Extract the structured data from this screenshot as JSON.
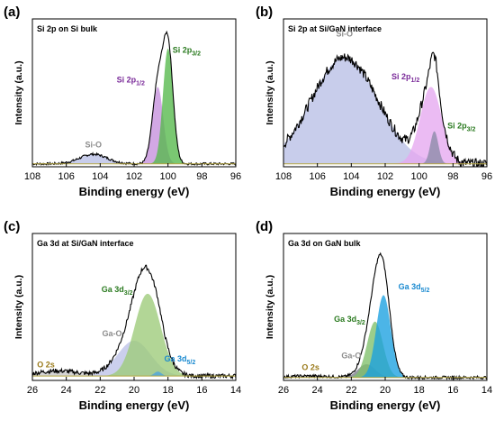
{
  "chart_data": [
    {
      "type": "line",
      "panel": "(a)",
      "title": "Si 2p on Si bulk",
      "xlabel": "Binding energy (eV)",
      "ylabel": "Intensity (a.u.)",
      "xlim": [
        108,
        96
      ],
      "xticks": [
        108,
        106,
        104,
        102,
        100,
        98,
        96
      ],
      "ylim": [
        0,
        1
      ],
      "background": 0.02,
      "components": [
        {
          "annotation": "Si-O",
          "annotation_color": "#8c8c8c",
          "fill": "#b8bfe6",
          "center": 104.4,
          "amplitude": 0.065,
          "fwhm": 1.9,
          "label_x": 104.4,
          "label_y": 0.13
        },
        {
          "annotation": "Si 2p",
          "sub": "1/2",
          "annotation_color": "#7a2a99",
          "fill": "#c58fdc",
          "center": 100.6,
          "amplitude": 0.52,
          "fwhm": 0.75,
          "label_x": 102.2,
          "label_y": 0.57
        },
        {
          "annotation": "Si 2p",
          "sub": "3/2",
          "annotation_color": "#2a7a1f",
          "fill": "#55b84a",
          "center": 100.0,
          "amplitude": 0.78,
          "fwhm": 0.7,
          "label_x": 98.9,
          "label_y": 0.77
        }
      ],
      "envelope_noise": 0.008
    },
    {
      "type": "line",
      "panel": "(b)",
      "title": "Si 2p at Si/GaN interface",
      "xlabel": "Binding energy (eV)",
      "ylabel": "Intensity (a.u.)",
      "xlim": [
        108,
        96
      ],
      "xticks": [
        108,
        106,
        104,
        102,
        100,
        98,
        96
      ],
      "ylim": [
        0,
        1
      ],
      "background": 0.02,
      "components": [
        {
          "annotation": "Si-O",
          "annotation_color": "#8c8c8c",
          "fill": "#b8bfe6",
          "center": 104.4,
          "amplitude": 0.72,
          "fwhm": 4.6,
          "label_x": 104.4,
          "label_y": 0.88
        },
        {
          "annotation": "Si 2p",
          "sub": "1/2",
          "annotation_color": "#7a2a99",
          "fill": "#e6a8f0",
          "center": 99.3,
          "amplitude": 0.52,
          "fwhm": 1.5,
          "label_x": 100.8,
          "label_y": 0.59
        },
        {
          "annotation": "Si 2p",
          "sub": "3/2",
          "annotation_color": "#2a7a1f",
          "fill": "#8a8aa6",
          "center": 99.1,
          "amplitude": 0.22,
          "fwhm": 0.55,
          "label_x": 97.5,
          "label_y": 0.26
        }
      ],
      "envelope_noise": 0.035
    },
    {
      "type": "line",
      "panel": "(c)",
      "title": "Ga 3d at Si/GaN interface",
      "xlabel": "Binding energy (eV)",
      "ylabel": "Intensity (a.u.)",
      "xlim": [
        26,
        14
      ],
      "xticks": [
        26,
        24,
        22,
        20,
        18,
        16,
        14
      ],
      "ylim": [
        0,
        1
      ],
      "background": 0.03,
      "components": [
        {
          "annotation": "O 2s",
          "annotation_color": "#9a7a1a",
          "fill": "#c8c8c8",
          "center": 24.5,
          "amplitude": 0.035,
          "fwhm": 3.0,
          "label_x": 25.2,
          "label_y": 0.09
        },
        {
          "annotation": "Ga-O",
          "annotation_color": "#8c8c8c",
          "fill": "#bcc2e8",
          "center": 20.0,
          "amplitude": 0.24,
          "fwhm": 2.3,
          "label_x": 21.3,
          "label_y": 0.3
        },
        {
          "annotation": "Ga 3d",
          "sub": "3/2",
          "annotation_color": "#2a7a1f",
          "fill": "#9ccb78",
          "center": 19.2,
          "amplitude": 0.56,
          "fwhm": 1.8,
          "label_x": 21.0,
          "label_y": 0.6
        },
        {
          "annotation": "Ga 3d",
          "sub": "5/2",
          "annotation_color": "#1a8ad0",
          "fill": "#4aa3e0",
          "center": 18.6,
          "amplitude": 0.03,
          "fwhm": 0.5,
          "label_x": 17.3,
          "label_y": 0.13
        }
      ],
      "envelope_noise": 0.015
    },
    {
      "type": "line",
      "panel": "(d)",
      "title": "Ga 3d on GaN bulk",
      "xlabel": "Binding energy (eV)",
      "ylabel": "Intensity (a.u.)",
      "xlim": [
        26,
        14
      ],
      "xticks": [
        26,
        24,
        22,
        20,
        18,
        16,
        14
      ],
      "ylim": [
        0,
        1
      ],
      "background": 0.02,
      "components": [
        {
          "annotation": "O 2s",
          "annotation_color": "#9a7a1a",
          "fill": "#c8c8c8",
          "center": 24.5,
          "amplitude": 0.01,
          "fwhm": 3.0,
          "label_x": 24.4,
          "label_y": 0.07
        },
        {
          "annotation": "Ga-O",
          "annotation_color": "#8c8c8c",
          "fill": "#7a7a8a",
          "center": 21.1,
          "amplitude": 0.09,
          "fwhm": 1.2,
          "label_x": 22.0,
          "label_y": 0.15
        },
        {
          "annotation": "Ga 3d",
          "sub": "3/2",
          "annotation_color": "#2a7a1f",
          "fill": "#7fc06a",
          "center": 20.6,
          "amplitude": 0.38,
          "fwhm": 1.1,
          "label_x": 22.1,
          "label_y": 0.4
        },
        {
          "annotation": "Ga 3d",
          "sub": "5/2",
          "annotation_color": "#1a8ad0",
          "fill": "#1aa0e0",
          "center": 20.1,
          "amplitude": 0.56,
          "fwhm": 1.0,
          "label_x": 18.3,
          "label_y": 0.62
        }
      ],
      "envelope_noise": 0.01
    }
  ]
}
